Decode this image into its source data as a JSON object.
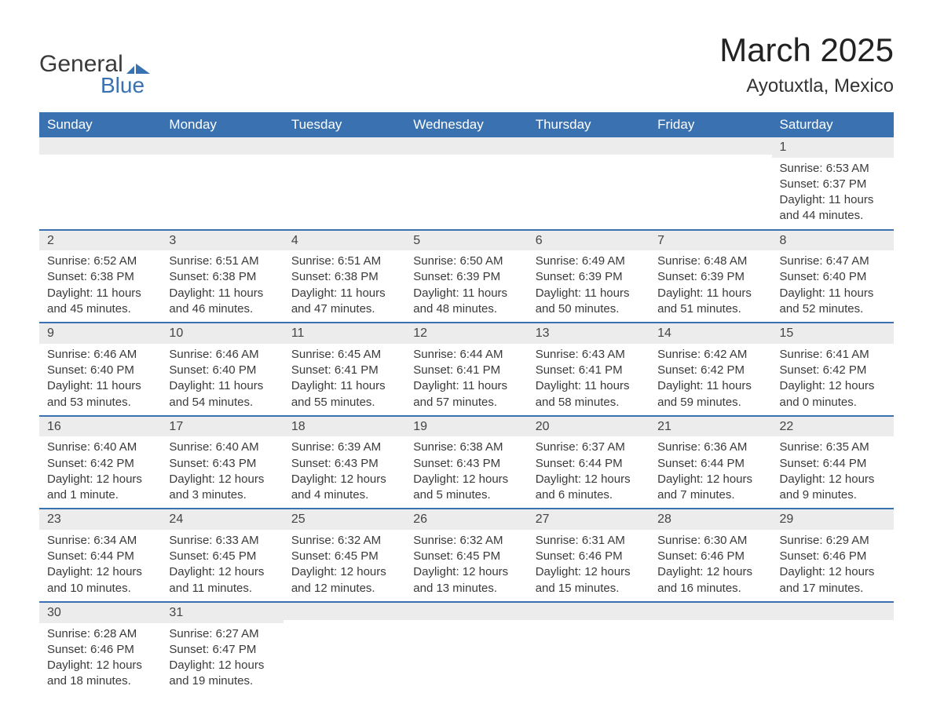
{
  "logo": {
    "text1": "General",
    "text2": "Blue",
    "flag_color": "#3a71b0"
  },
  "title": "March 2025",
  "location": "Ayotuxtla, Mexico",
  "colors": {
    "header_bg": "#3a71b0",
    "header_text": "#ffffff",
    "row_border": "#3a71b0",
    "daynum_bg": "#ececec",
    "text": "#3a3a3a"
  },
  "daysOfWeek": [
    "Sunday",
    "Monday",
    "Tuesday",
    "Wednesday",
    "Thursday",
    "Friday",
    "Saturday"
  ],
  "weeks": [
    [
      null,
      null,
      null,
      null,
      null,
      null,
      {
        "n": 1,
        "sunrise": "6:53 AM",
        "sunset": "6:37 PM",
        "daylight": "11 hours and 44 minutes."
      }
    ],
    [
      {
        "n": 2,
        "sunrise": "6:52 AM",
        "sunset": "6:38 PM",
        "daylight": "11 hours and 45 minutes."
      },
      {
        "n": 3,
        "sunrise": "6:51 AM",
        "sunset": "6:38 PM",
        "daylight": "11 hours and 46 minutes."
      },
      {
        "n": 4,
        "sunrise": "6:51 AM",
        "sunset": "6:38 PM",
        "daylight": "11 hours and 47 minutes."
      },
      {
        "n": 5,
        "sunrise": "6:50 AM",
        "sunset": "6:39 PM",
        "daylight": "11 hours and 48 minutes."
      },
      {
        "n": 6,
        "sunrise": "6:49 AM",
        "sunset": "6:39 PM",
        "daylight": "11 hours and 50 minutes."
      },
      {
        "n": 7,
        "sunrise": "6:48 AM",
        "sunset": "6:39 PM",
        "daylight": "11 hours and 51 minutes."
      },
      {
        "n": 8,
        "sunrise": "6:47 AM",
        "sunset": "6:40 PM",
        "daylight": "11 hours and 52 minutes."
      }
    ],
    [
      {
        "n": 9,
        "sunrise": "6:46 AM",
        "sunset": "6:40 PM",
        "daylight": "11 hours and 53 minutes."
      },
      {
        "n": 10,
        "sunrise": "6:46 AM",
        "sunset": "6:40 PM",
        "daylight": "11 hours and 54 minutes."
      },
      {
        "n": 11,
        "sunrise": "6:45 AM",
        "sunset": "6:41 PM",
        "daylight": "11 hours and 55 minutes."
      },
      {
        "n": 12,
        "sunrise": "6:44 AM",
        "sunset": "6:41 PM",
        "daylight": "11 hours and 57 minutes."
      },
      {
        "n": 13,
        "sunrise": "6:43 AM",
        "sunset": "6:41 PM",
        "daylight": "11 hours and 58 minutes."
      },
      {
        "n": 14,
        "sunrise": "6:42 AM",
        "sunset": "6:42 PM",
        "daylight": "11 hours and 59 minutes."
      },
      {
        "n": 15,
        "sunrise": "6:41 AM",
        "sunset": "6:42 PM",
        "daylight": "12 hours and 0 minutes."
      }
    ],
    [
      {
        "n": 16,
        "sunrise": "6:40 AM",
        "sunset": "6:42 PM",
        "daylight": "12 hours and 1 minute."
      },
      {
        "n": 17,
        "sunrise": "6:40 AM",
        "sunset": "6:43 PM",
        "daylight": "12 hours and 3 minutes."
      },
      {
        "n": 18,
        "sunrise": "6:39 AM",
        "sunset": "6:43 PM",
        "daylight": "12 hours and 4 minutes."
      },
      {
        "n": 19,
        "sunrise": "6:38 AM",
        "sunset": "6:43 PM",
        "daylight": "12 hours and 5 minutes."
      },
      {
        "n": 20,
        "sunrise": "6:37 AM",
        "sunset": "6:44 PM",
        "daylight": "12 hours and 6 minutes."
      },
      {
        "n": 21,
        "sunrise": "6:36 AM",
        "sunset": "6:44 PM",
        "daylight": "12 hours and 7 minutes."
      },
      {
        "n": 22,
        "sunrise": "6:35 AM",
        "sunset": "6:44 PM",
        "daylight": "12 hours and 9 minutes."
      }
    ],
    [
      {
        "n": 23,
        "sunrise": "6:34 AM",
        "sunset": "6:44 PM",
        "daylight": "12 hours and 10 minutes."
      },
      {
        "n": 24,
        "sunrise": "6:33 AM",
        "sunset": "6:45 PM",
        "daylight": "12 hours and 11 minutes."
      },
      {
        "n": 25,
        "sunrise": "6:32 AM",
        "sunset": "6:45 PM",
        "daylight": "12 hours and 12 minutes."
      },
      {
        "n": 26,
        "sunrise": "6:32 AM",
        "sunset": "6:45 PM",
        "daylight": "12 hours and 13 minutes."
      },
      {
        "n": 27,
        "sunrise": "6:31 AM",
        "sunset": "6:46 PM",
        "daylight": "12 hours and 15 minutes."
      },
      {
        "n": 28,
        "sunrise": "6:30 AM",
        "sunset": "6:46 PM",
        "daylight": "12 hours and 16 minutes."
      },
      {
        "n": 29,
        "sunrise": "6:29 AM",
        "sunset": "6:46 PM",
        "daylight": "12 hours and 17 minutes."
      }
    ],
    [
      {
        "n": 30,
        "sunrise": "6:28 AM",
        "sunset": "6:46 PM",
        "daylight": "12 hours and 18 minutes."
      },
      {
        "n": 31,
        "sunrise": "6:27 AM",
        "sunset": "6:47 PM",
        "daylight": "12 hours and 19 minutes."
      },
      null,
      null,
      null,
      null,
      null
    ]
  ],
  "labels": {
    "sunrise": "Sunrise:",
    "sunset": "Sunset:",
    "daylight": "Daylight:"
  }
}
